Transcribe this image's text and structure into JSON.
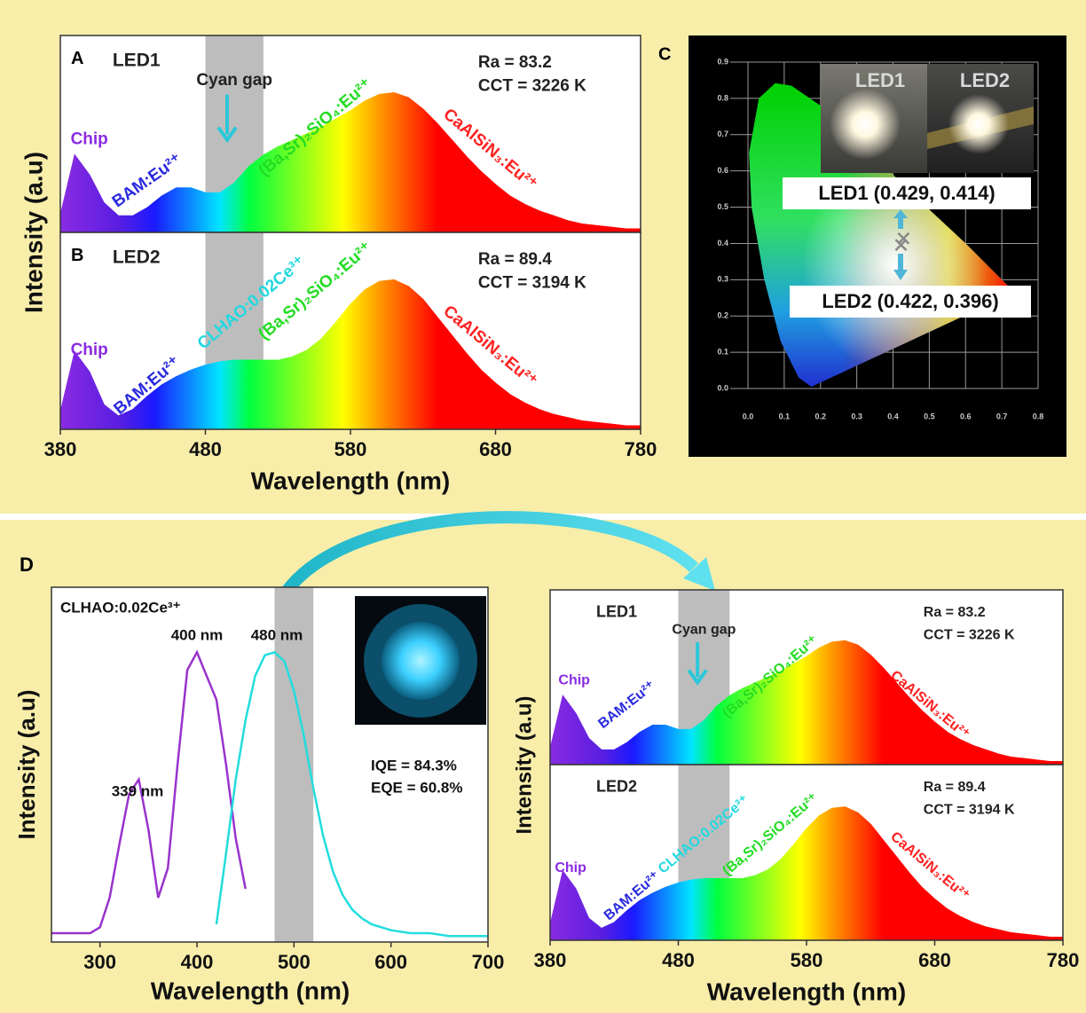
{
  "chart_data": [
    {
      "type": "spectrum",
      "panel": "A",
      "title": "LED1",
      "ylabel": "Intensity (a.u)",
      "xlim": [
        380,
        780
      ],
      "ylim": [
        0,
        1.2
      ],
      "band": [
        480,
        520
      ],
      "x": [
        380,
        390,
        400,
        410,
        420,
        430,
        440,
        450,
        460,
        470,
        480,
        490,
        500,
        510,
        520,
        530,
        540,
        550,
        560,
        570,
        580,
        590,
        600,
        610,
        620,
        630,
        640,
        650,
        660,
        670,
        680,
        690,
        700,
        710,
        720,
        730,
        740,
        750,
        760,
        770,
        780
      ],
      "values": [
        0.1,
        0.47,
        0.35,
        0.18,
        0.1,
        0.1,
        0.15,
        0.22,
        0.27,
        0.27,
        0.24,
        0.24,
        0.3,
        0.4,
        0.47,
        0.52,
        0.56,
        0.6,
        0.64,
        0.69,
        0.74,
        0.8,
        0.84,
        0.85,
        0.82,
        0.75,
        0.66,
        0.56,
        0.46,
        0.37,
        0.29,
        0.22,
        0.17,
        0.13,
        0.1,
        0.07,
        0.05,
        0.04,
        0.03,
        0.02,
        0.02
      ],
      "annotations": [
        "Chip",
        "BAM:Eu²⁺",
        "Cyan gap",
        "(Ba,Sr)₂SiO₄:Eu²⁺",
        "CaAlSiN₃:Eu²⁺",
        "Ra = 83.2",
        "CCT = 3226 K"
      ]
    },
    {
      "type": "spectrum",
      "panel": "B",
      "title": "LED2",
      "xlabel": "Wavelength (nm)",
      "xlim": [
        380,
        780
      ],
      "ylim": [
        0,
        1.2
      ],
      "xticks": [
        380,
        480,
        580,
        680,
        780
      ],
      "band": [
        480,
        520
      ],
      "x": [
        380,
        390,
        400,
        410,
        420,
        430,
        440,
        450,
        460,
        470,
        480,
        490,
        500,
        510,
        520,
        530,
        540,
        550,
        560,
        570,
        580,
        590,
        600,
        610,
        620,
        630,
        640,
        650,
        660,
        670,
        680,
        690,
        700,
        710,
        720,
        730,
        740,
        750,
        760,
        770,
        780
      ],
      "values": [
        0.1,
        0.47,
        0.35,
        0.15,
        0.08,
        0.12,
        0.2,
        0.27,
        0.32,
        0.36,
        0.39,
        0.41,
        0.42,
        0.42,
        0.42,
        0.42,
        0.44,
        0.48,
        0.55,
        0.65,
        0.76,
        0.85,
        0.9,
        0.91,
        0.87,
        0.79,
        0.68,
        0.57,
        0.46,
        0.36,
        0.28,
        0.21,
        0.16,
        0.12,
        0.09,
        0.07,
        0.05,
        0.04,
        0.03,
        0.02,
        0.02
      ],
      "annotations": [
        "Chip",
        "BAM:Eu²⁺",
        "CLHAO:0.02Ce³⁺",
        "(Ba,Sr)₂SiO₄:Eu²⁺",
        "CaAlSiN₃:Eu²⁺",
        "Ra = 89.4",
        "CCT = 3194 K"
      ]
    },
    {
      "type": "scatter",
      "panel": "C",
      "xlim": [
        0,
        0.8
      ],
      "ylim": [
        0,
        0.9
      ],
      "xticks": [
        {
          "value": 0,
          "label": "0.0"
        },
        0.1,
        0.2,
        0.3,
        0.4,
        0.5,
        0.6,
        0.7,
        0.8
      ],
      "yticks": [
        {
          "value": 0,
          "label": "0.0"
        },
        0.1,
        0.2,
        0.3,
        0.4,
        0.5,
        0.6,
        0.7,
        0.8,
        0.9
      ],
      "grid": true,
      "series": [
        {
          "name": "LED1",
          "color": "#888888",
          "x": [
            0.429
          ],
          "values": [
            0.414
          ],
          "value_labels": [
            "LED1 (0.429, 0.414)"
          ]
        },
        {
          "name": "LED2",
          "color": "#888888",
          "x": [
            0.422
          ],
          "values": [
            0.396
          ],
          "value_labels": [
            "LED2 (0.422, 0.396)"
          ]
        }
      ]
    },
    {
      "type": "line",
      "panel": "D",
      "title": "CLHAO:0.02Ce³⁺",
      "xlabel": "Wavelength (nm)",
      "ylabel": "Intensity (a.u)",
      "xlim": [
        250,
        700
      ],
      "ylim": [
        0,
        1.2
      ],
      "xticks": [
        300,
        400,
        500,
        600,
        700
      ],
      "band": [
        480,
        520
      ],
      "series": [
        {
          "color": "#9933cc",
          "x": [
            250,
            260,
            270,
            280,
            290,
            300,
            310,
            320,
            330,
            340,
            350,
            360,
            370,
            380,
            390,
            400,
            410,
            420,
            430,
            440,
            450
          ],
          "values": [
            0.03,
            0.03,
            0.03,
            0.03,
            0.03,
            0.05,
            0.15,
            0.33,
            0.5,
            0.55,
            0.38,
            0.15,
            0.25,
            0.6,
            0.92,
            0.98,
            0.9,
            0.82,
            0.6,
            0.35,
            0.18
          ]
        },
        {
          "color": "#22dddd",
          "x": [
            420,
            430,
            440,
            450,
            460,
            470,
            480,
            490,
            500,
            510,
            520,
            530,
            540,
            550,
            560,
            570,
            580,
            590,
            600,
            620,
            640,
            660,
            680,
            700
          ],
          "values": [
            0.06,
            0.3,
            0.55,
            0.75,
            0.9,
            0.97,
            0.98,
            0.95,
            0.85,
            0.7,
            0.52,
            0.36,
            0.24,
            0.16,
            0.11,
            0.08,
            0.06,
            0.05,
            0.04,
            0.03,
            0.03,
            0.02,
            0.02,
            0.02
          ]
        }
      ],
      "annotations": [
        "339 nm",
        "400 nm",
        "480 nm",
        "IQE = 84.3%",
        "EQE = 60.8%"
      ]
    },
    {
      "type": "spectrum",
      "title": "LED1",
      "ylabel": "Intensity (a.u)",
      "xlim": [
        380,
        780
      ],
      "ylim": [
        0,
        1.2
      ],
      "band": [
        480,
        520
      ],
      "x": [
        380,
        390,
        400,
        410,
        420,
        430,
        440,
        450,
        460,
        470,
        480,
        490,
        500,
        510,
        520,
        530,
        540,
        550,
        560,
        570,
        580,
        590,
        600,
        610,
        620,
        630,
        640,
        650,
        660,
        670,
        680,
        690,
        700,
        710,
        720,
        730,
        740,
        750,
        760,
        770,
        780
      ],
      "values": [
        0.1,
        0.47,
        0.35,
        0.18,
        0.1,
        0.1,
        0.15,
        0.22,
        0.27,
        0.27,
        0.24,
        0.24,
        0.3,
        0.4,
        0.47,
        0.52,
        0.56,
        0.6,
        0.64,
        0.69,
        0.74,
        0.8,
        0.84,
        0.85,
        0.82,
        0.75,
        0.66,
        0.56,
        0.46,
        0.37,
        0.29,
        0.22,
        0.17,
        0.13,
        0.1,
        0.07,
        0.05,
        0.04,
        0.03,
        0.02,
        0.02
      ],
      "annotations": [
        "Chip",
        "BAM:Eu²⁺",
        "Cyan gap",
        "(Ba,Sr)₂SiO₄:Eu²⁺",
        "CaAlSiN₃:Eu²⁺",
        "Ra = 83.2",
        "CCT = 3226 K"
      ]
    },
    {
      "type": "spectrum",
      "title": "LED2",
      "xlabel": "Wavelength (nm)",
      "xlim": [
        380,
        780
      ],
      "ylim": [
        0,
        1.2
      ],
      "xticks": [
        380,
        480,
        580,
        680,
        780
      ],
      "band": [
        480,
        520
      ],
      "x": [
        380,
        390,
        400,
        410,
        420,
        430,
        440,
        450,
        460,
        470,
        480,
        490,
        500,
        510,
        520,
        530,
        540,
        550,
        560,
        570,
        580,
        590,
        600,
        610,
        620,
        630,
        640,
        650,
        660,
        670,
        680,
        690,
        700,
        710,
        720,
        730,
        740,
        750,
        760,
        770,
        780
      ],
      "values": [
        0.1,
        0.47,
        0.35,
        0.15,
        0.08,
        0.12,
        0.2,
        0.27,
        0.32,
        0.36,
        0.39,
        0.41,
        0.42,
        0.42,
        0.42,
        0.42,
        0.44,
        0.48,
        0.55,
        0.65,
        0.76,
        0.85,
        0.9,
        0.91,
        0.87,
        0.79,
        0.68,
        0.57,
        0.46,
        0.36,
        0.28,
        0.21,
        0.16,
        0.12,
        0.09,
        0.07,
        0.05,
        0.04,
        0.03,
        0.02,
        0.02
      ],
      "annotations": [
        "Chip",
        "BAM:Eu²⁺",
        "CLHAO:0.02Ce³⁺",
        "(Ba,Sr)₂SiO₄:Eu²⁺",
        "CaAlSiN₃:Eu²⁺",
        "Ra = 89.4",
        "CCT = 3194 K"
      ]
    }
  ]
}
